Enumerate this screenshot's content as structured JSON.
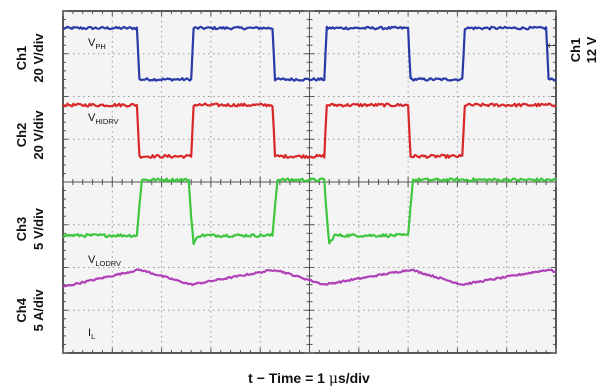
{
  "chart_data": {
    "type": "line",
    "title": "",
    "xlabel_parts": {
      "prefix": "t − Time = 1 ",
      "mu": "μ",
      "suffix": "s/div"
    },
    "x_unit": "µs",
    "x_range": [
      0,
      10
    ],
    "y_range_div": [
      0,
      8
    ],
    "grid": true,
    "series": [
      {
        "name": "Ch1",
        "color": "#2a3aa8",
        "scale_label": "20 V/div",
        "trace_label": {
          "main": "V",
          "sub": "PH"
        },
        "marker_label": "12 V",
        "noise": 0.03,
        "points": [
          [
            0,
            7.6
          ],
          [
            1.5,
            7.6
          ],
          [
            1.55,
            6.4
          ],
          [
            2.6,
            6.4
          ],
          [
            2.65,
            7.6
          ],
          [
            4.25,
            7.6
          ],
          [
            4.3,
            6.4
          ],
          [
            5.3,
            6.4
          ],
          [
            5.35,
            7.6
          ],
          [
            7.0,
            7.6
          ],
          [
            7.05,
            6.4
          ],
          [
            8.1,
            6.4
          ],
          [
            8.15,
            7.6
          ],
          [
            9.8,
            7.6
          ],
          [
            9.85,
            6.4
          ],
          [
            10,
            6.4
          ]
        ]
      },
      {
        "name": "Ch2",
        "color": "#d9282a",
        "scale_label": "20 V/div",
        "trace_label": {
          "main": "V",
          "sub": "HIDRV"
        },
        "noise": 0.035,
        "points": [
          [
            0,
            5.8
          ],
          [
            1.5,
            5.8
          ],
          [
            1.55,
            4.6
          ],
          [
            2.6,
            4.6
          ],
          [
            2.65,
            5.8
          ],
          [
            4.25,
            5.8
          ],
          [
            4.3,
            4.6
          ],
          [
            5.3,
            4.6
          ],
          [
            5.35,
            5.8
          ],
          [
            7.0,
            5.8
          ],
          [
            7.05,
            4.6
          ],
          [
            8.1,
            4.6
          ],
          [
            8.15,
            5.8
          ],
          [
            10,
            5.8
          ]
        ]
      },
      {
        "name": "Ch3",
        "color": "#3ec63e",
        "scale_label": "5 V/div",
        "trace_label": {
          "main": "V",
          "sub": "LODRV"
        },
        "noise": 0.035,
        "points": [
          [
            0,
            2.75
          ],
          [
            1.5,
            2.75
          ],
          [
            1.55,
            3.45
          ],
          [
            1.6,
            4.05
          ],
          [
            2.55,
            4.05
          ],
          [
            2.6,
            3.2
          ],
          [
            2.65,
            2.55
          ],
          [
            2.75,
            2.75
          ],
          [
            4.25,
            2.75
          ],
          [
            4.3,
            3.45
          ],
          [
            4.35,
            4.05
          ],
          [
            5.3,
            4.05
          ],
          [
            5.35,
            3.2
          ],
          [
            5.4,
            2.55
          ],
          [
            5.5,
            2.75
          ],
          [
            7.0,
            2.75
          ],
          [
            7.05,
            3.45
          ],
          [
            7.1,
            4.05
          ],
          [
            10,
            4.05
          ]
        ]
      },
      {
        "name": "Ch4",
        "color": "#b040b8",
        "scale_label": "5 A/div",
        "trace_label": {
          "main": "I",
          "sub": "L"
        },
        "noise": 0.02,
        "points": [
          [
            0,
            1.55
          ],
          [
            1.55,
            1.95
          ],
          [
            2.6,
            1.6
          ],
          [
            4.3,
            1.95
          ],
          [
            5.3,
            1.6
          ],
          [
            7.05,
            1.95
          ],
          [
            8.1,
            1.6
          ],
          [
            9.85,
            1.95
          ],
          [
            10,
            1.9
          ]
        ]
      }
    ]
  }
}
